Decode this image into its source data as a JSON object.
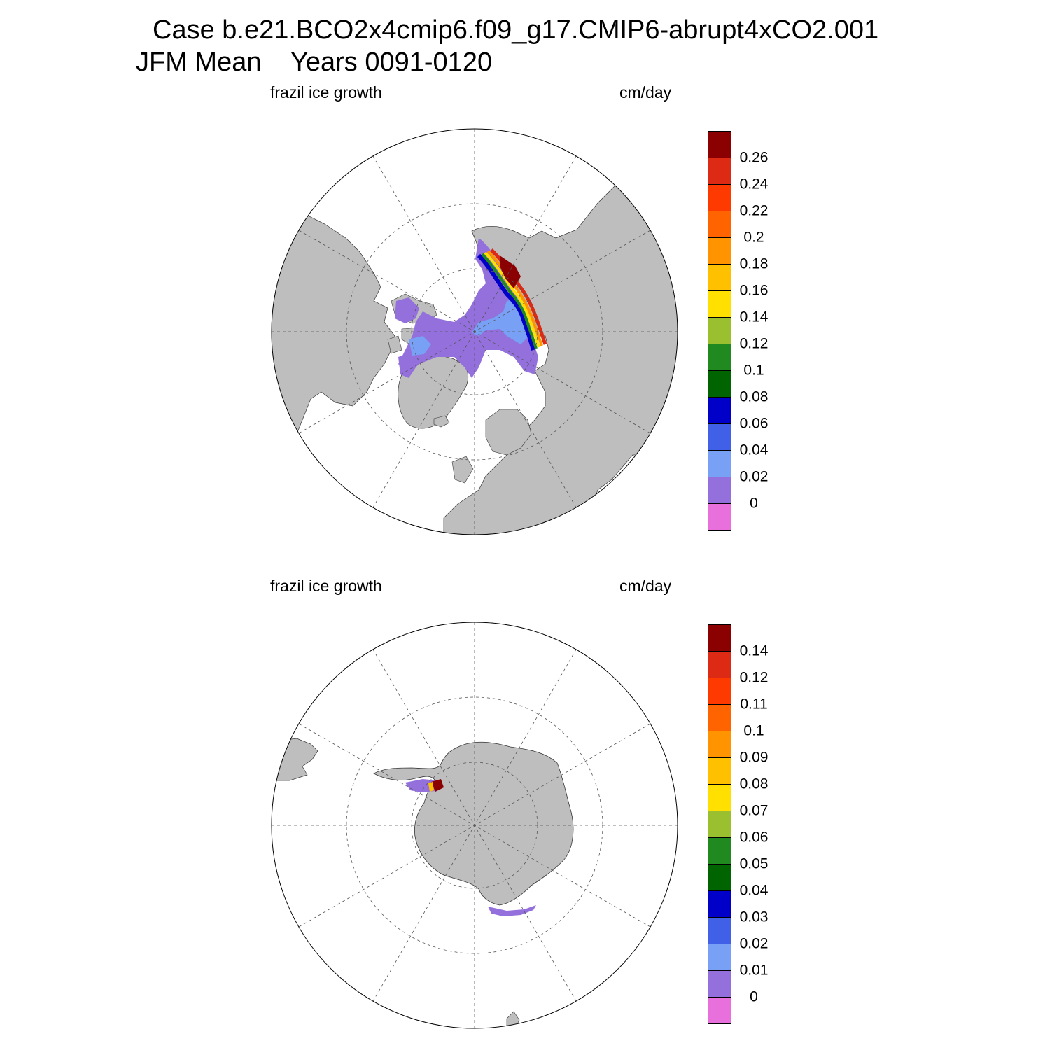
{
  "title": {
    "line1": "Case b.e21.BCO2x4cmip6.f09_g17.CMIP6-abrupt4xCO2.001",
    "line2": "JFM Mean    Years 0091-0120"
  },
  "panels": [
    {
      "id": "north",
      "hemisphere": "Northern Hemisphere polar stereographic",
      "left_label": "frazil ice growth",
      "right_label": "cm/day",
      "colorbar": {
        "labels": [
          "0.26",
          "0.24",
          "0.22",
          "0.2",
          "0.18",
          "0.16",
          "0.14",
          "0.12",
          "0.1",
          "0.08",
          "0.06",
          "0.04",
          "0.02",
          "0"
        ]
      }
    },
    {
      "id": "south",
      "hemisphere": "Southern Hemisphere polar stereographic",
      "left_label": "frazil ice growth",
      "right_label": "cm/day",
      "colorbar": {
        "labels": [
          "0.14",
          "0.12",
          "0.11",
          "0.1",
          "0.09",
          "0.08",
          "0.07",
          "0.06",
          "0.05",
          "0.04",
          "0.03",
          "0.02",
          "0.01",
          "0"
        ]
      }
    }
  ],
  "colors": {
    "palette_top_to_bottom": [
      "#8b0000",
      "#dc2a14",
      "#ff3a00",
      "#ff6400",
      "#ff9400",
      "#ffc000",
      "#ffe000",
      "#9ac030",
      "#208a20",
      "#006400",
      "#0000c8",
      "#4060e8",
      "#78a0f4",
      "#9370dc",
      "#e870dc"
    ],
    "land": "#bebebe",
    "ocean": "#ffffff",
    "grid": "#555555"
  }
}
